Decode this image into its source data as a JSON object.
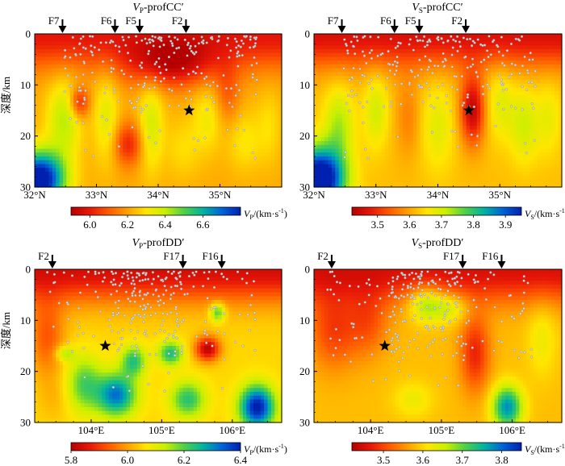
{
  "figure": {
    "ylabel": "深度/km"
  },
  "chart_data": [
    {
      "type": "heatmap",
      "id": "vp-cc",
      "title_main": "V",
      "title_sub": "P",
      "title_rest": "-profCC′",
      "ylabel": "深度/km",
      "xlim": [
        32.0,
        36.0
      ],
      "ylim": [
        0,
        30
      ],
      "xticks": [
        32,
        33,
        34,
        35
      ],
      "xtick_labels": [
        "32°N",
        "33°N",
        "34°N",
        "35°N"
      ],
      "yticks": [
        0,
        10,
        20,
        30
      ],
      "ytick_labels": [
        "0",
        "10",
        "20",
        "30"
      ],
      "faults": [
        {
          "name": "F7",
          "x": 32.45
        },
        {
          "name": "F6",
          "x": 33.3
        },
        {
          "name": "F5",
          "x": 33.7
        },
        {
          "name": "F2",
          "x": 34.45
        }
      ],
      "star": {
        "x": 34.5,
        "y": 15
      },
      "colorbar": {
        "label_main": "V",
        "label_sub": "P",
        "label_rest": "/(km·s",
        "label_sup": "-1",
        "label_end": ")",
        "min": 5.9,
        "max": 6.8,
        "ticks": [
          6.0,
          6.2,
          6.4,
          6.6
        ],
        "tick_labels": [
          "6.0",
          "6.2",
          "6.4",
          "6.6"
        ]
      }
    },
    {
      "type": "heatmap",
      "id": "vs-cc",
      "title_main": "V",
      "title_sub": "S",
      "title_rest": "-profCC′",
      "ylabel": "",
      "xlim": [
        32.0,
        36.0
      ],
      "ylim": [
        0,
        30
      ],
      "xticks": [
        32,
        33,
        34,
        35
      ],
      "xtick_labels": [
        "32°N",
        "33°N",
        "34°N",
        "35°N"
      ],
      "yticks": [
        0,
        10,
        20,
        30
      ],
      "ytick_labels": [
        "0",
        "10",
        "20",
        "30"
      ],
      "faults": [
        {
          "name": "F7",
          "x": 32.45
        },
        {
          "name": "F6",
          "x": 33.3
        },
        {
          "name": "F5",
          "x": 33.7
        },
        {
          "name": "F2",
          "x": 34.45
        }
      ],
      "star": {
        "x": 34.5,
        "y": 15
      },
      "colorbar": {
        "label_main": "V",
        "label_sub": "S",
        "label_rest": "/(km·s",
        "label_sup": "-1",
        "label_end": ")",
        "min": 3.42,
        "max": 3.95,
        "ticks": [
          3.5,
          3.6,
          3.7,
          3.8,
          3.9
        ],
        "tick_labels": [
          "3.5",
          "3.6",
          "3.7",
          "3.8",
          "3.9"
        ]
      }
    },
    {
      "type": "heatmap",
      "id": "vp-dd",
      "title_main": "V",
      "title_sub": "P",
      "title_rest": "-profDD′",
      "ylabel": "深度/km",
      "xlim": [
        103.2,
        106.7
      ],
      "ylim": [
        0,
        30
      ],
      "xticks": [
        104,
        105,
        106
      ],
      "xtick_labels": [
        "104°E",
        "105°E",
        "106°E"
      ],
      "yticks": [
        0,
        10,
        20,
        30
      ],
      "ytick_labels": [
        "0",
        "10",
        "20",
        "30"
      ],
      "faults": [
        {
          "name": "F2",
          "x": 103.45
        },
        {
          "name": "F17",
          "x": 105.3
        },
        {
          "name": "F16",
          "x": 105.85
        }
      ],
      "star": {
        "x": 104.2,
        "y": 15
      },
      "colorbar": {
        "label_main": "V",
        "label_sub": "P",
        "label_rest": "/(km·s",
        "label_sup": "-1",
        "label_end": ")",
        "min": 5.8,
        "max": 6.4,
        "ticks": [
          5.8,
          6.0,
          6.2,
          6.4
        ],
        "tick_labels": [
          "5.8",
          "6.0",
          "6.2",
          "6.4"
        ]
      }
    },
    {
      "type": "heatmap",
      "id": "vs-dd",
      "title_main": "V",
      "title_sub": "S",
      "title_rest": "-profDD′",
      "ylabel": "",
      "xlim": [
        103.2,
        106.7
      ],
      "ylim": [
        0,
        30
      ],
      "xticks": [
        104,
        105,
        106
      ],
      "xtick_labels": [
        "104°E",
        "105°E",
        "106°E"
      ],
      "yticks": [
        0,
        10,
        20,
        30
      ],
      "ytick_labels": [
        "0",
        "10",
        "20",
        "30"
      ],
      "faults": [
        {
          "name": "F2",
          "x": 103.45
        },
        {
          "name": "F17",
          "x": 105.3
        },
        {
          "name": "F16",
          "x": 105.85
        }
      ],
      "star": {
        "x": 104.2,
        "y": 15
      },
      "colorbar": {
        "label_main": "V",
        "label_sub": "S",
        "label_rest": "/(km·s",
        "label_sup": "-1",
        "label_end": ")",
        "min": 3.42,
        "max": 3.85,
        "ticks": [
          3.5,
          3.6,
          3.7,
          3.8
        ],
        "tick_labels": [
          "3.5",
          "3.6",
          "3.7",
          "3.8"
        ]
      }
    }
  ],
  "colors": {
    "colormap": [
      "#b40000",
      "#e81808",
      "#ff5a00",
      "#ffa000",
      "#ffe600",
      "#c8f000",
      "#50d048",
      "#00b4a0",
      "#0064d8",
      "#0020b0"
    ],
    "event_dot": "#d8d8d8",
    "star": "#000000"
  }
}
